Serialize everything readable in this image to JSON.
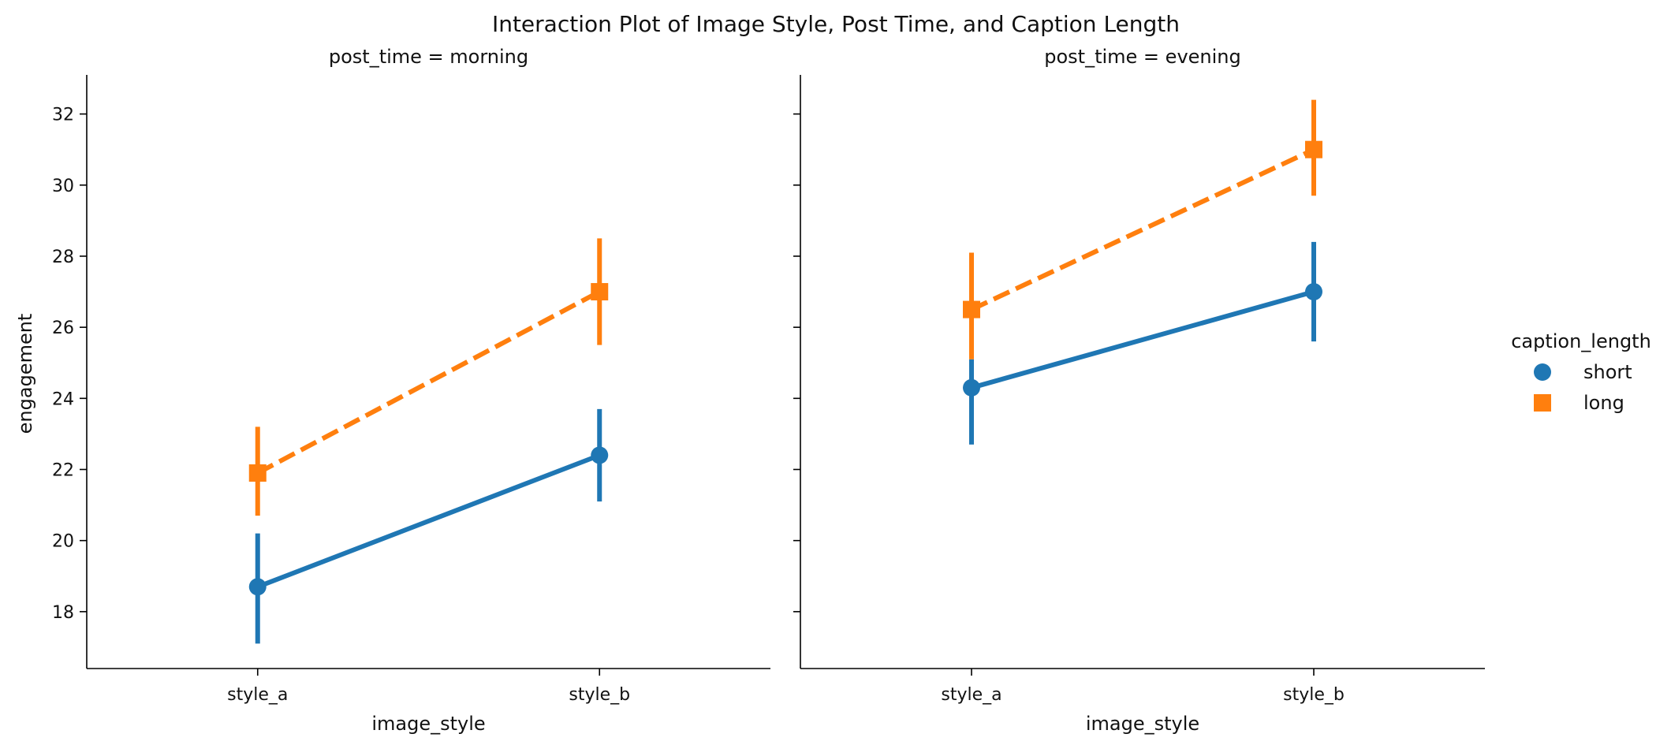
{
  "chart_data": {
    "type": "line",
    "title": "Interaction Plot of Image Style, Post Time, and Caption Length",
    "categories": [
      "style_a",
      "style_b"
    ],
    "xlabel": "image_style",
    "ylabel": "engagement",
    "ylim": [
      16.4,
      33.1
    ],
    "yticks": [
      18,
      20,
      22,
      24,
      26,
      28,
      30,
      32
    ],
    "grid": false,
    "legend": {
      "title": "caption_length",
      "placement": "right"
    },
    "panels": [
      {
        "title": "post_time = morning",
        "series": [
          {
            "name": "short",
            "values": [
              18.7,
              22.4
            ],
            "error_low": [
              17.1,
              21.1
            ],
            "error_high": [
              20.2,
              23.7
            ]
          },
          {
            "name": "long",
            "values": [
              21.9,
              27.0
            ],
            "error_low": [
              20.7,
              25.5
            ],
            "error_high": [
              23.2,
              28.5
            ]
          }
        ]
      },
      {
        "title": "post_time = evening",
        "series": [
          {
            "name": "short",
            "values": [
              24.3,
              27.0
            ],
            "error_low": [
              22.7,
              25.6
            ],
            "error_high": [
              25.1,
              28.4
            ]
          },
          {
            "name": "long",
            "values": [
              26.5,
              31.0
            ],
            "error_low": [
              25.1,
              29.7
            ],
            "error_high": [
              28.1,
              32.4
            ]
          }
        ]
      }
    ],
    "series_styles": [
      {
        "name": "short",
        "color": "#1f77b4",
        "marker": "circle",
        "dash": "solid"
      },
      {
        "name": "long",
        "color": "#ff7f0e",
        "marker": "square",
        "dash": "dashed"
      }
    ]
  }
}
